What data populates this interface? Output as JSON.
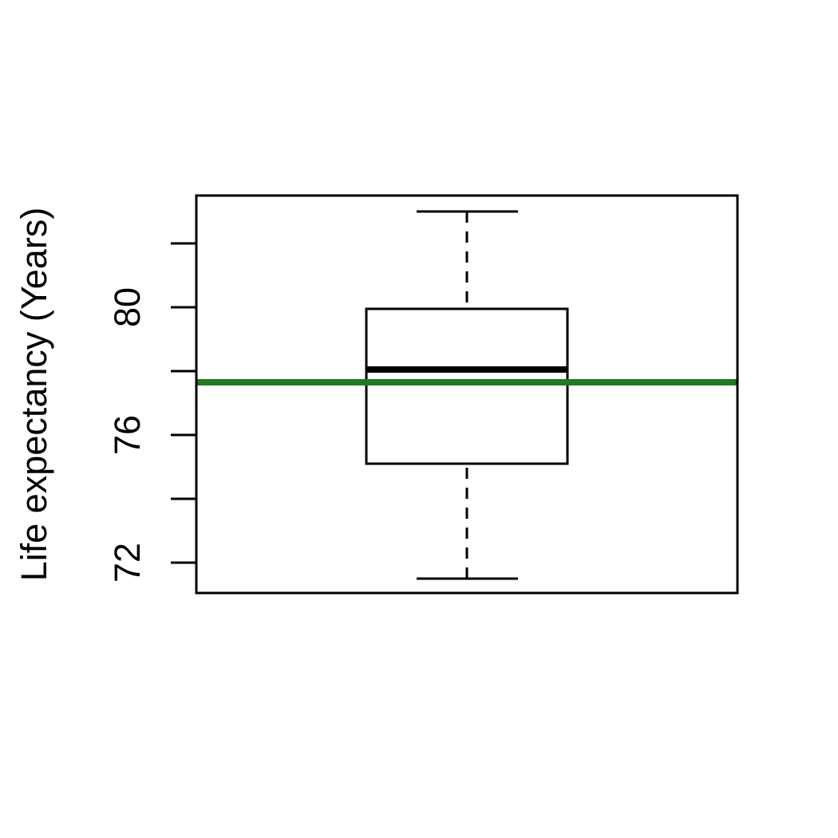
{
  "chart_data": {
    "type": "boxplot",
    "title": "",
    "xlabel": "",
    "ylabel": "Life expectancy (Years)",
    "ylim": [
      71.05,
      83.5
    ],
    "y_ticks": [
      72,
      74,
      76,
      78,
      80,
      82
    ],
    "y_tick_labels": [
      "72",
      "76",
      "80"
    ],
    "labeled_tick_values": [
      72,
      76,
      80
    ],
    "box": {
      "whisker_low": 71.5,
      "q1": 75.1,
      "median": 78.05,
      "q3": 79.95,
      "whisker_high": 83.0
    },
    "reference_line": {
      "value": 77.65,
      "color": "#217a21"
    },
    "grid": false,
    "legend": "none"
  }
}
